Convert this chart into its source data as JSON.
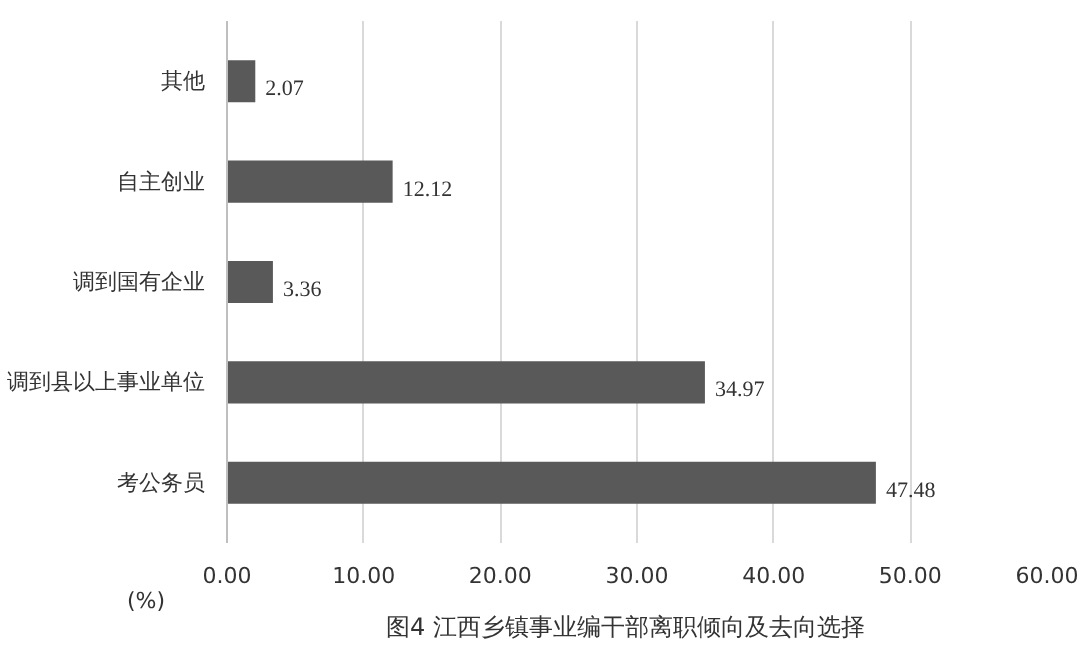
{
  "chart_data": {
    "type": "bar",
    "orientation": "horizontal",
    "categories": [
      "其他",
      "自主创业",
      "调到国有企业",
      "调到县以上事业单位",
      "考公务员"
    ],
    "values": [
      2.07,
      12.12,
      3.36,
      34.97,
      47.48
    ],
    "color": "#595959",
    "data_labels": true,
    "xlim": [
      0,
      60
    ],
    "xticks": [
      {
        "value": 0,
        "label": "0.00"
      },
      {
        "value": 10,
        "label": "10.00"
      },
      {
        "value": 20,
        "label": "20.00"
      },
      {
        "value": 30,
        "label": "30.00"
      },
      {
        "value": 40,
        "label": "40.00"
      },
      {
        "value": 50,
        "label": "50.00"
      },
      {
        "value": 60,
        "label": "60.00"
      }
    ],
    "xlabel": "(%)",
    "grid": "x",
    "annotations": [
      "图4    江西乡镇事业编干部离职倾向及去向选择"
    ]
  }
}
